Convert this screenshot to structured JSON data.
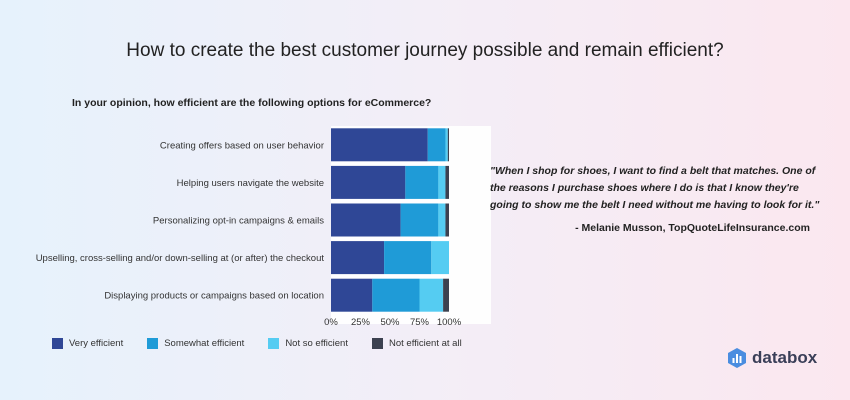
{
  "header": {
    "title": "How to create the best customer journey possible and remain efficient?"
  },
  "chart_data": {
    "type": "bar",
    "orientation": "horizontal",
    "stacked": true,
    "title": "In your opinion, how efficient are the following options for eCommerce?",
    "categories": [
      "Creating offers based on user behavior",
      "Helping users navigate the website",
      "Personalizing opt-in campaigns & emails",
      "Upselling, cross-selling and/or down-selling at (or after) the checkout",
      "Displaying products or campaigns based on location"
    ],
    "series": [
      {
        "name": "Very efficient",
        "color": "#2f4796",
        "values": [
          82,
          63,
          59,
          45,
          35
        ]
      },
      {
        "name": "Somewhat efficient",
        "color": "#1f9bd7",
        "values": [
          15,
          28,
          32,
          40,
          40
        ]
      },
      {
        "name": "Not so efficient",
        "color": "#55ccf2",
        "values": [
          2,
          6,
          6,
          15,
          20
        ]
      },
      {
        "name": "Not efficient at all",
        "color": "#3c4150",
        "values": [
          1,
          3,
          3,
          0,
          5
        ]
      }
    ],
    "x_ticks": [
      "0%",
      "25%",
      "50%",
      "75%",
      "100%"
    ],
    "xlim": [
      0,
      100
    ],
    "legend": "bottom"
  },
  "quote": {
    "text": "\"When I shop for shoes, I want to find a belt that matches. One of the reasons I purchase shoes where I do is that I know they're going to show me the belt I need without me having to look for it.\"",
    "author": "- Melanie Musson, TopQuoteLifeInsurance.com"
  },
  "brand": {
    "name": "databox",
    "icon": "databox-logo-icon",
    "color": "#3a3f58"
  }
}
